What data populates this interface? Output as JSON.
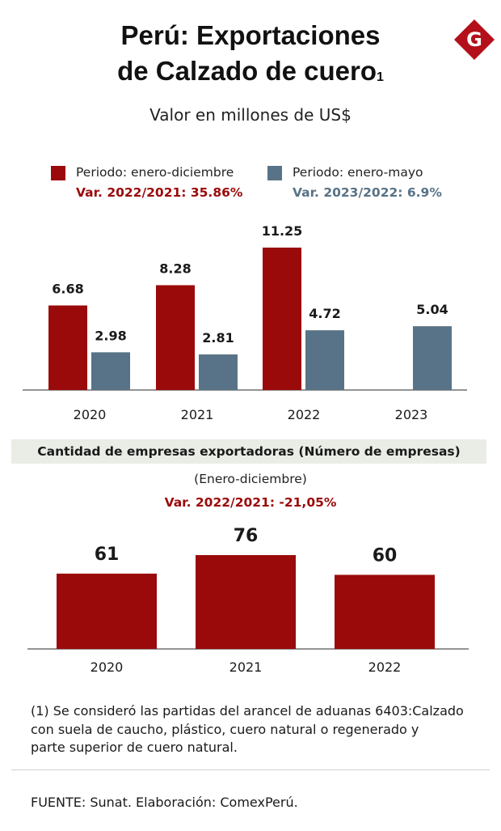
{
  "header": {
    "title_line1": "Perú: Exportaciones",
    "title_line2": "de Calzado de cuero",
    "title_sup": "1",
    "subtitle": "Valor en millones de US$",
    "logo_letter": "G"
  },
  "legend": {
    "series1_label": "Periodo: enero-diciembre",
    "series1_var": "Var. 2022/2021:  35.86%",
    "series2_label": "Periodo: enero-mayo",
    "series2_var": "Var. 2023/2022: 6.9%"
  },
  "colors": {
    "red": "#9b0a0a",
    "blue": "#587387",
    "band": "#e9ede6"
  },
  "chart_data": [
    {
      "type": "bar",
      "title": "Valor en millones de US$",
      "categories": [
        "2020",
        "2021",
        "2022",
        "2023"
      ],
      "series": [
        {
          "name": "Periodo: enero-diciembre",
          "values": [
            6.68,
            8.28,
            11.25,
            null
          ]
        },
        {
          "name": "Periodo: enero-mayo",
          "values": [
            2.98,
            2.81,
            4.72,
            5.04
          ]
        }
      ],
      "value_labels": [
        [
          "6.68",
          "8.28",
          "11.25",
          ""
        ],
        [
          "2.98",
          "2.81",
          "4.72",
          "5.04"
        ]
      ],
      "ylim": [
        0,
        11.25
      ],
      "grid": false,
      "legend_position": "top-left"
    },
    {
      "type": "bar",
      "title": "Cantidad de empresas exportadoras (Número de empresas)",
      "subtitle": "(Enero-diciembre)",
      "annotation": "Var. 2022/2021:  -21,05%",
      "categories": [
        "2020",
        "2021",
        "2022"
      ],
      "values": [
        61,
        76,
        60
      ],
      "value_labels": [
        "61",
        "76",
        "60"
      ],
      "ylim": [
        0,
        76
      ],
      "grid": false
    }
  ],
  "footnote": {
    "line1": "(1) Se consideró las partidas del arancel de aduanas 6403:Calzado",
    "line2": "con suela de caucho,  plástico, cuero natural o regenerado y",
    "line3": "parte superior de cuero natural."
  },
  "source": "FUENTE: Sunat. Elaboración: ComexPerú."
}
